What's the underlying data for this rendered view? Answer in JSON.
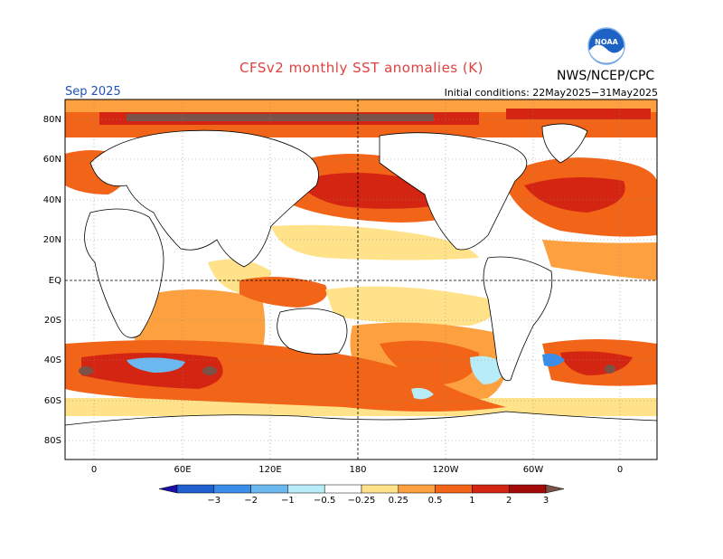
{
  "header": {
    "title": "CFSv2 monthly SST anomalies (K)",
    "period": "Sep 2025",
    "initial_conditions": "Initial conditions: 22May2025−31May2025",
    "agency": "NWS/NCEP/CPC",
    "logo_text": "NOAA"
  },
  "axes": {
    "lat_labels": [
      "80N",
      "60N",
      "40N",
      "20N",
      "EQ",
      "20S",
      "40S",
      "60S",
      "80S"
    ],
    "lon_labels": [
      "0",
      "60E",
      "120E",
      "180",
      "120W",
      "60W",
      "0"
    ]
  },
  "colorbar": {
    "tick_labels": [
      "−3",
      "−2",
      "−1",
      "−0.5",
      "−0.25",
      "0.25",
      "0.5",
      "1",
      "2",
      "3"
    ],
    "colors": [
      "#1a0fa8",
      "#1f5fd0",
      "#3a8de8",
      "#6cb8f0",
      "#b8ecf8",
      "#ffffff",
      "#ffe289",
      "#fca040",
      "#f26418",
      "#d42512",
      "#a30a0a",
      "#7a5248"
    ]
  }
}
